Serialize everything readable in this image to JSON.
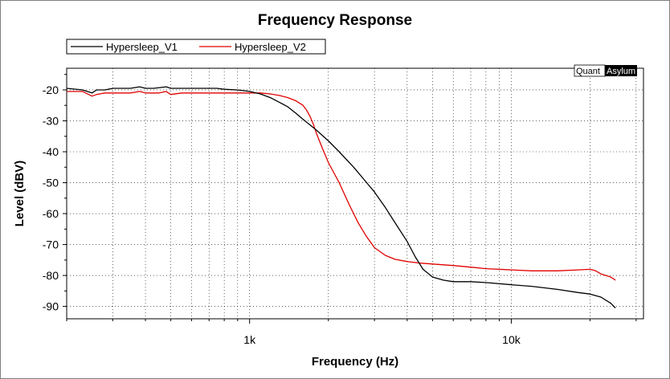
{
  "chart_data": {
    "type": "line",
    "title": "Frequency Response",
    "xlabel": "Frequency (Hz)",
    "ylabel": "Level (dBV)",
    "xscale": "log",
    "xlim": [
      200,
      32000
    ],
    "ylim": [
      -94,
      -13
    ],
    "x_ticks": [
      {
        "value": 1000,
        "label": "1k"
      },
      {
        "value": 10000,
        "label": "10k"
      }
    ],
    "y_ticks": [
      {
        "value": -20,
        "label": "-20"
      },
      {
        "value": -30,
        "label": "-30"
      },
      {
        "value": -40,
        "label": "-40"
      },
      {
        "value": -50,
        "label": "-50"
      },
      {
        "value": -60,
        "label": "-60"
      },
      {
        "value": -70,
        "label": "-70"
      },
      {
        "value": -80,
        "label": "-80"
      },
      {
        "value": -90,
        "label": "-90"
      }
    ],
    "grid": true,
    "legend_position": "top-left",
    "watermark": {
      "part1": "Quant",
      "part2": "Asylum"
    },
    "series": [
      {
        "name": "Hypersleep_V1",
        "color": "#000000",
        "x": [
          200,
          230,
          250,
          260,
          280,
          300,
          320,
          350,
          380,
          400,
          430,
          480,
          500,
          550,
          600,
          650,
          700,
          750,
          800,
          900,
          1000,
          1100,
          1200,
          1300,
          1400,
          1500,
          1600,
          1700,
          1800,
          2000,
          2200,
          2500,
          2800,
          3000,
          3300,
          3600,
          4000,
          4300,
          4600,
          5000,
          5500,
          6000,
          7000,
          8000,
          10000,
          12000,
          15000,
          18000,
          20000,
          22000,
          24000,
          25000
        ],
        "y": [
          -19.5,
          -20.0,
          -21.0,
          -20.0,
          -20.0,
          -19.5,
          -19.5,
          -19.5,
          -19.0,
          -19.5,
          -19.5,
          -19.0,
          -19.5,
          -19.5,
          -19.5,
          -19.5,
          -19.5,
          -19.5,
          -19.8,
          -20.0,
          -20.5,
          -21.3,
          -22.5,
          -24.0,
          -25.5,
          -27.5,
          -29.5,
          -31.3,
          -33.0,
          -36.5,
          -40.0,
          -45.0,
          -50.0,
          -53.0,
          -58.0,
          -63.0,
          -69.0,
          -74.0,
          -78.0,
          -80.5,
          -81.5,
          -82.0,
          -82.0,
          -82.3,
          -83.0,
          -83.5,
          -84.5,
          -85.5,
          -86.0,
          -87.0,
          -89.0,
          -90.5
        ]
      },
      {
        "name": "Hypersleep_V2",
        "color": "#e00000",
        "x": [
          200,
          230,
          250,
          260,
          280,
          300,
          350,
          380,
          400,
          450,
          480,
          500,
          550,
          600,
          700,
          800,
          900,
          1000,
          1100,
          1200,
          1300,
          1400,
          1500,
          1600,
          1650,
          1700,
          1750,
          1800,
          1900,
          2000,
          2200,
          2400,
          2600,
          2800,
          3000,
          3300,
          3600,
          4000,
          4500,
          5000,
          6000,
          7000,
          8000,
          10000,
          12000,
          15000,
          18000,
          20000,
          21000,
          22000,
          23000,
          24000,
          25000
        ],
        "y": [
          -20.5,
          -20.5,
          -22.0,
          -21.5,
          -21.0,
          -21.0,
          -21.0,
          -20.5,
          -21.0,
          -21.0,
          -20.5,
          -21.5,
          -21.0,
          -21.0,
          -21.0,
          -21.0,
          -21.0,
          -21.0,
          -21.0,
          -21.3,
          -21.8,
          -22.5,
          -23.5,
          -25.0,
          -26.5,
          -28.5,
          -31.0,
          -34.0,
          -39.0,
          -43.5,
          -50.0,
          -57.0,
          -63.0,
          -67.5,
          -71.0,
          -73.5,
          -74.8,
          -75.5,
          -76.0,
          -76.3,
          -76.8,
          -77.3,
          -77.8,
          -78.2,
          -78.5,
          -78.5,
          -78.2,
          -78.0,
          -78.5,
          -79.5,
          -80.0,
          -80.5,
          -81.5
        ]
      }
    ]
  }
}
